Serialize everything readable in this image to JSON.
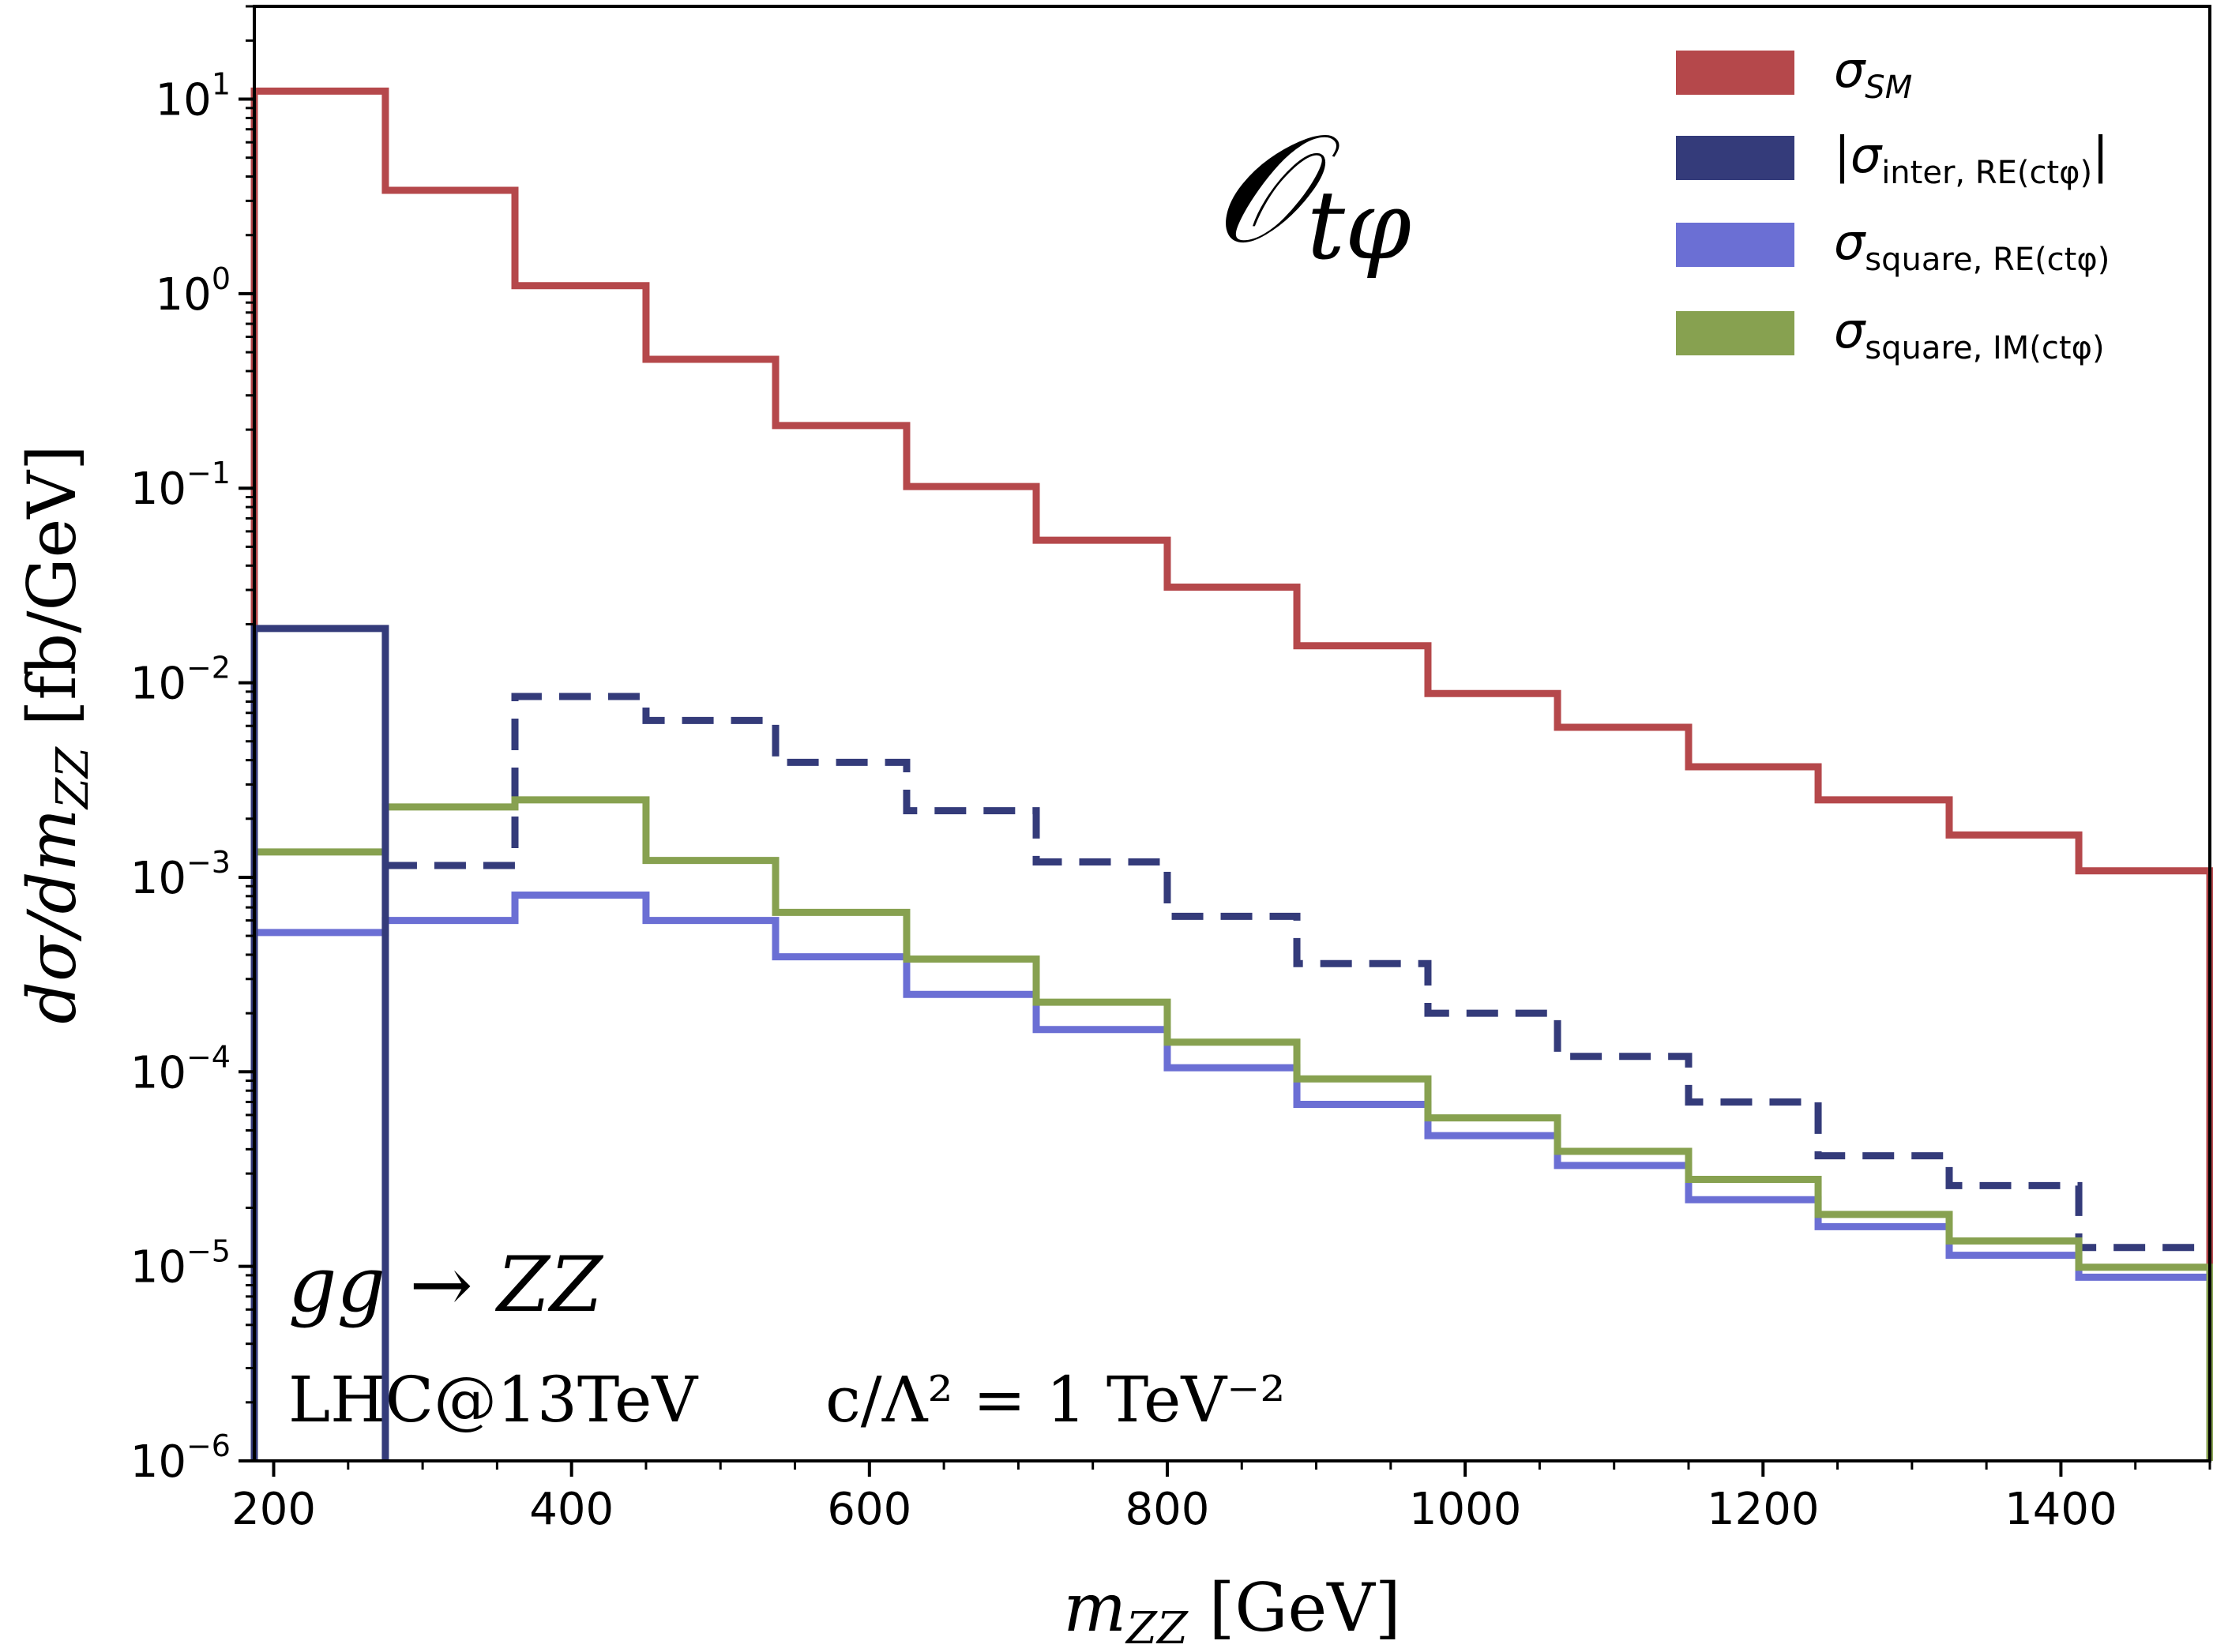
{
  "chart_data": {
    "type": "line",
    "style": "step-histogram",
    "xscale": "linear",
    "yscale": "log",
    "xlim": [
      187,
      1500
    ],
    "ylim": [
      1e-06,
      30
    ],
    "xlabel": "m_{ZZ} [GeV]",
    "ylabel": "dσ/dm_{ZZ} [fb/GeV]",
    "x_ticks": [
      200,
      400,
      600,
      800,
      1000,
      1200,
      1400
    ],
    "x_minor_step": 50,
    "y_ticks": [
      {
        "value": 1e-06,
        "base": "10",
        "exp": "−6"
      },
      {
        "value": 1e-05,
        "base": "10",
        "exp": "−5"
      },
      {
        "value": 0.0001,
        "base": "10",
        "exp": "−4"
      },
      {
        "value": 0.001,
        "base": "10",
        "exp": "−3"
      },
      {
        "value": 0.01,
        "base": "10",
        "exp": "−2"
      },
      {
        "value": 0.1,
        "base": "10",
        "exp": "−1"
      },
      {
        "value": 1,
        "base": "10",
        "exp": "0"
      },
      {
        "value": 10,
        "base": "10",
        "exp": "1"
      }
    ],
    "bin_edges": [
      187,
      275,
      362,
      450,
      537,
      625,
      712,
      800,
      887,
      975,
      1062,
      1150,
      1237,
      1325,
      1412,
      1500
    ],
    "series": [
      {
        "name": "σ_SM",
        "color": "#b5484b",
        "dash": false,
        "values": [
          11.0,
          3.4,
          1.1,
          0.46,
          0.21,
          0.102,
          0.054,
          0.031,
          0.0155,
          0.0088,
          0.0059,
          0.0037,
          0.0025,
          0.00165,
          0.00108
        ]
      },
      {
        "name": "|σ_inter, RE(ctφ)|",
        "color": "#343b7a",
        "dash": false,
        "values": [
          0.019
        ],
        "bins": [
          0
        ]
      },
      {
        "name": "|σ_inter, RE(ctφ)| (negative)",
        "color": "#343b7a",
        "dash": true,
        "values": [
          0.00115,
          0.0085,
          0.0064,
          0.0039,
          0.0022,
          0.0012,
          0.00063,
          0.00036,
          0.0002,
          0.00012,
          7e-05,
          3.7e-05,
          2.6e-05,
          1.25e-05
        ],
        "bins": [
          1,
          2,
          3,
          4,
          5,
          6,
          7,
          8,
          9,
          10,
          11,
          12,
          13,
          14
        ]
      },
      {
        "name": "σ_square, RE(ctφ)",
        "color": "#6b6fd4",
        "dash": false,
        "values": [
          0.00052,
          0.0006,
          0.00081,
          0.0006,
          0.00039,
          0.00025,
          0.000165,
          0.000105,
          6.8e-05,
          4.7e-05,
          3.3e-05,
          2.2e-05,
          1.6e-05,
          1.14e-05,
          8.8e-06
        ]
      },
      {
        "name": "σ_square, IM(ctφ)",
        "color": "#87a150",
        "dash": false,
        "values": [
          0.00135,
          0.0023,
          0.0025,
          0.00122,
          0.00066,
          0.00038,
          0.000228,
          0.000142,
          9.2e-05,
          5.8e-05,
          3.9e-05,
          2.8e-05,
          1.85e-05,
          1.35e-05,
          9.9e-06
        ]
      }
    ],
    "legend": {
      "position": "top-right",
      "entries": [
        {
          "main": "σ",
          "sub": "SM",
          "color": "#b5484b"
        },
        {
          "main": "|σ",
          "sub": "inter, RE(ctφ)",
          "suffix": "|",
          "color": "#343b7a"
        },
        {
          "main": "σ",
          "sub": "square, RE(ctφ)",
          "color": "#6b6fd4"
        },
        {
          "main": "σ",
          "sub": "square, IM(ctφ)",
          "color": "#87a150"
        }
      ]
    },
    "annotations": {
      "operator": "𝒪",
      "operator_sub": "tφ",
      "process": "gg → ZZ",
      "collider": "LHC@13TeV",
      "coupling": "c/Λ² = 1 TeV⁻²"
    },
    "title": ""
  }
}
